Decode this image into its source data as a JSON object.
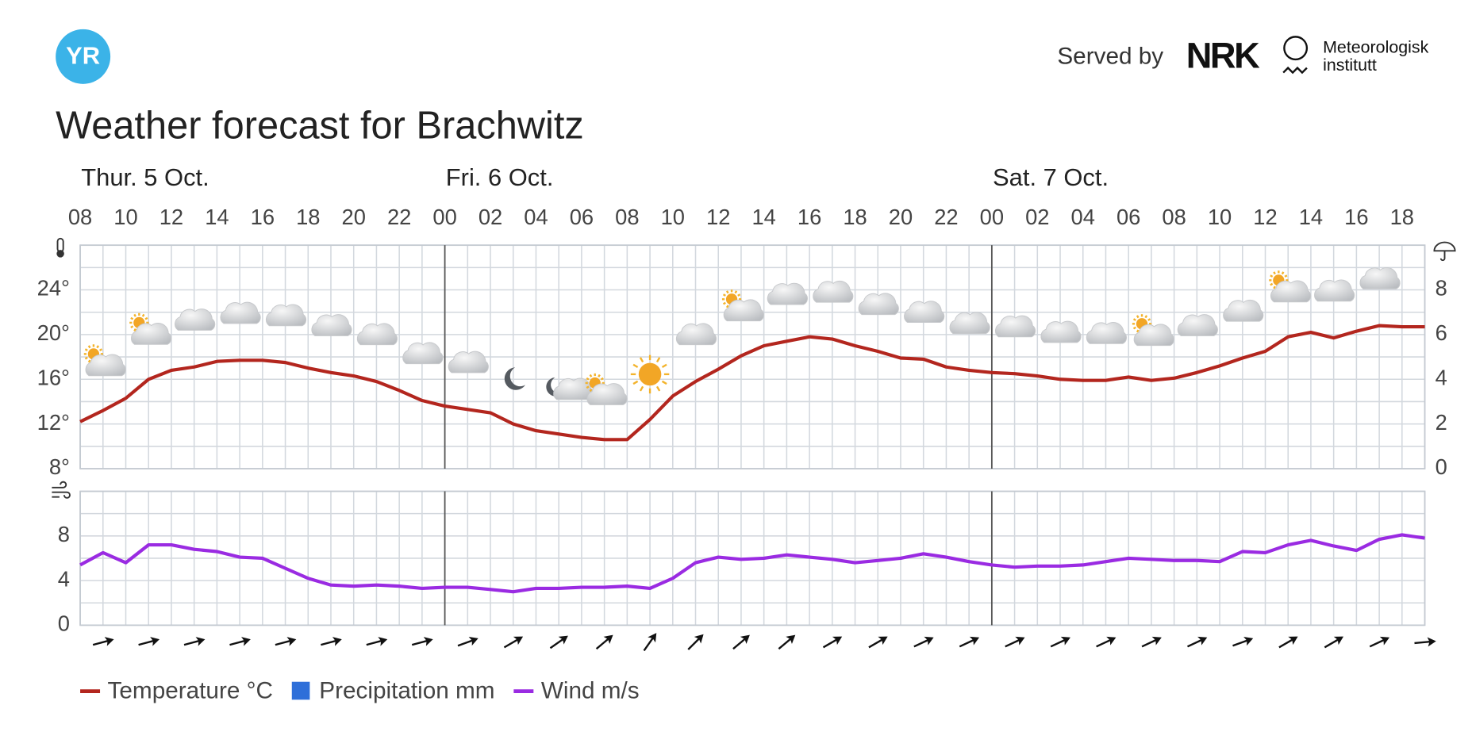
{
  "header": {
    "logo": "YR",
    "served_by": "Served by",
    "nrk": "NRK",
    "met_line1": "Meteorologisk",
    "met_line2": "institutt",
    "title": "Weather forecast for Brachwitz"
  },
  "chart_data": {
    "type": "line",
    "categories": [
      "08",
      null,
      "10",
      null,
      "12",
      null,
      "14",
      null,
      "16",
      null,
      "18",
      null,
      "20",
      null,
      "22",
      null,
      "00",
      null,
      "02",
      null,
      "04",
      null,
      "06",
      null,
      "08",
      null,
      "10",
      null,
      "12",
      null,
      "14",
      null,
      "16",
      null,
      "18",
      null,
      "20",
      null,
      "22",
      null,
      "00",
      null,
      "02",
      null,
      "04",
      null,
      "06",
      null,
      "08",
      null,
      "10",
      null,
      "12",
      null,
      "14",
      null,
      "16",
      null,
      "18",
      null
    ],
    "days": [
      "Thur. 5 Oct.",
      null,
      null,
      null,
      null,
      null,
      null,
      null,
      null,
      null,
      null,
      null,
      null,
      null,
      null,
      null,
      "Fri. 6 Oct.",
      null,
      null,
      null,
      null,
      null,
      null,
      null,
      null,
      null,
      null,
      null,
      null,
      null,
      null,
      null,
      null,
      null,
      null,
      null,
      null,
      null,
      null,
      null,
      "Sat. 7 Oct.",
      null,
      null,
      null,
      null,
      null,
      null,
      null,
      null,
      null,
      null,
      null,
      null,
      null,
      null,
      null,
      null,
      null,
      null,
      null
    ],
    "series": [
      {
        "name": "Temperature °C",
        "color": "#b3261e",
        "values": [
          12.2,
          13.2,
          14.3,
          16.0,
          16.8,
          17.1,
          17.6,
          17.7,
          17.7,
          17.5,
          17.0,
          16.6,
          16.3,
          15.8,
          15.0,
          14.1,
          13.6,
          13.3,
          13.0,
          12.0,
          11.4,
          11.1,
          10.8,
          10.6,
          10.6,
          12.4,
          14.5,
          15.8,
          16.9,
          18.1,
          19.0,
          19.4,
          19.8,
          19.6,
          19.0,
          18.5,
          17.9,
          17.8,
          17.1,
          16.8,
          16.6,
          16.5,
          16.3,
          16.0,
          15.9,
          15.9,
          16.2,
          15.9,
          16.1,
          16.6,
          17.2,
          17.9,
          18.5,
          19.8,
          20.2,
          19.7,
          20.3,
          20.8,
          20.7,
          20.7
        ]
      },
      {
        "name": "Precipitation mm",
        "color": "#2e6fd9",
        "axis": "y2",
        "values": [
          0,
          0,
          0,
          0,
          0,
          0,
          0,
          0,
          0,
          0,
          0,
          0,
          0,
          0,
          0,
          0,
          0,
          0,
          0,
          0,
          0,
          0,
          0,
          0,
          0,
          0,
          0,
          0,
          0,
          0,
          0,
          0,
          0,
          0,
          0,
          0,
          0,
          0,
          0,
          0,
          0,
          0,
          0,
          0,
          0,
          0,
          0,
          0,
          0,
          0,
          0,
          0,
          0,
          0,
          0,
          0,
          0,
          0,
          0,
          0
        ]
      },
      {
        "name": "Wind m/s",
        "color": "#9a2be2",
        "axis": "wind",
        "values": [
          5.4,
          6.5,
          5.6,
          7.2,
          7.2,
          6.8,
          6.6,
          6.1,
          6.0,
          5.1,
          4.2,
          3.6,
          3.5,
          3.6,
          3.5,
          3.3,
          3.4,
          3.4,
          3.2,
          3.0,
          3.3,
          3.3,
          3.4,
          3.4,
          3.5,
          3.3,
          4.2,
          5.6,
          6.1,
          5.9,
          6.0,
          6.3,
          6.1,
          5.9,
          5.6,
          5.8,
          6.0,
          6.4,
          6.1,
          5.7,
          5.4,
          5.2,
          5.3,
          5.3,
          5.4,
          5.7,
          6.0,
          5.9,
          5.8,
          5.8,
          5.7,
          6.6,
          6.5,
          7.2,
          7.6,
          7.1,
          6.7,
          7.7,
          8.1,
          7.8
        ]
      }
    ],
    "ylim": [
      8,
      28
    ],
    "yticks": [
      {
        "value": 8,
        "label": "8°"
      },
      {
        "value": 12,
        "label": "12°"
      },
      {
        "value": 16,
        "label": "16°"
      },
      {
        "value": 20,
        "label": "20°"
      },
      {
        "value": 24,
        "label": "24°"
      }
    ],
    "grid_yticks": [
      8,
      10,
      12,
      14,
      16,
      18,
      20,
      22,
      24,
      26,
      28
    ],
    "y2lim": [
      0,
      10
    ],
    "y2ticks": [
      0,
      2,
      4,
      6,
      8
    ],
    "wind_ylim": [
      0,
      12
    ],
    "wind_yticks": [
      0,
      4,
      8
    ],
    "wind_grid_yticks": [
      0,
      2,
      4,
      6,
      8,
      10,
      12
    ],
    "wind_arrow_angle": [
      15,
      15,
      15,
      15,
      15,
      15,
      15,
      15,
      20,
      30,
      35,
      40,
      55,
      45,
      40,
      40,
      30,
      30,
      25,
      25,
      25,
      25,
      25,
      25,
      25,
      20,
      30,
      30,
      25,
      5
    ],
    "grid": true
  }
}
